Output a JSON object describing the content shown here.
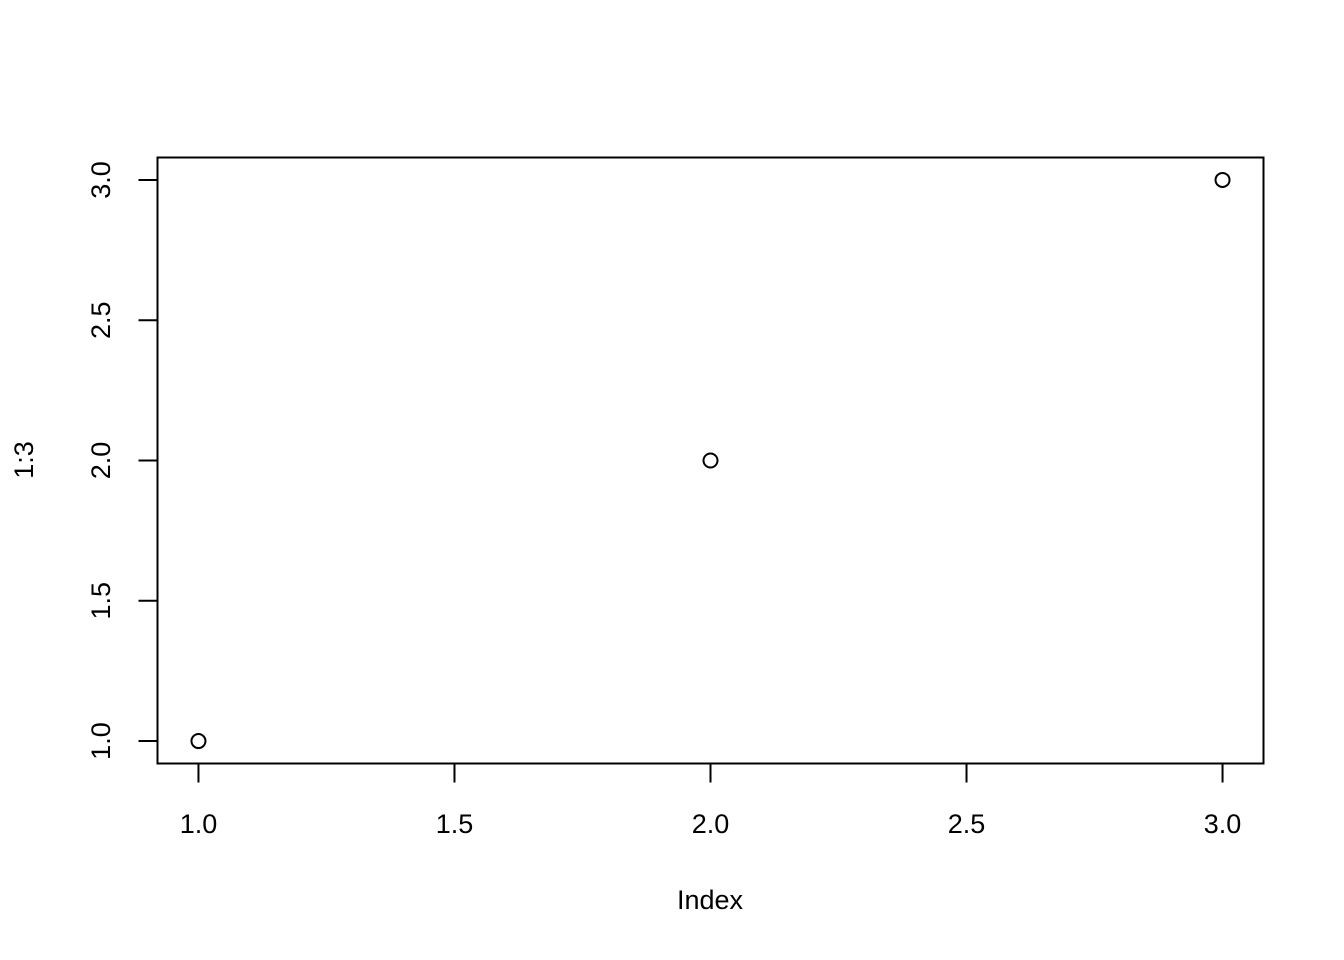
{
  "chart_data": {
    "type": "scatter",
    "title": "",
    "xlabel": "Index",
    "ylabel": "1:3",
    "x": [
      1,
      2,
      3
    ],
    "y": [
      1,
      2,
      3
    ],
    "xlim": [
      0.92,
      3.08
    ],
    "ylim": [
      0.92,
      3.08
    ],
    "xticks": [
      1.0,
      1.5,
      2.0,
      2.5,
      3.0
    ],
    "xtick_labels": [
      "1.0",
      "1.5",
      "2.0",
      "2.5",
      "3.0"
    ],
    "yticks": [
      1.0,
      1.5,
      2.0,
      2.5,
      3.0
    ],
    "ytick_labels": [
      "1.0",
      "1.5",
      "2.0",
      "2.5",
      "3.0"
    ],
    "grid": false,
    "marker": "open-circle",
    "colors": {
      "points": "#000000",
      "axes": "#000000",
      "background": "#ffffff"
    }
  }
}
